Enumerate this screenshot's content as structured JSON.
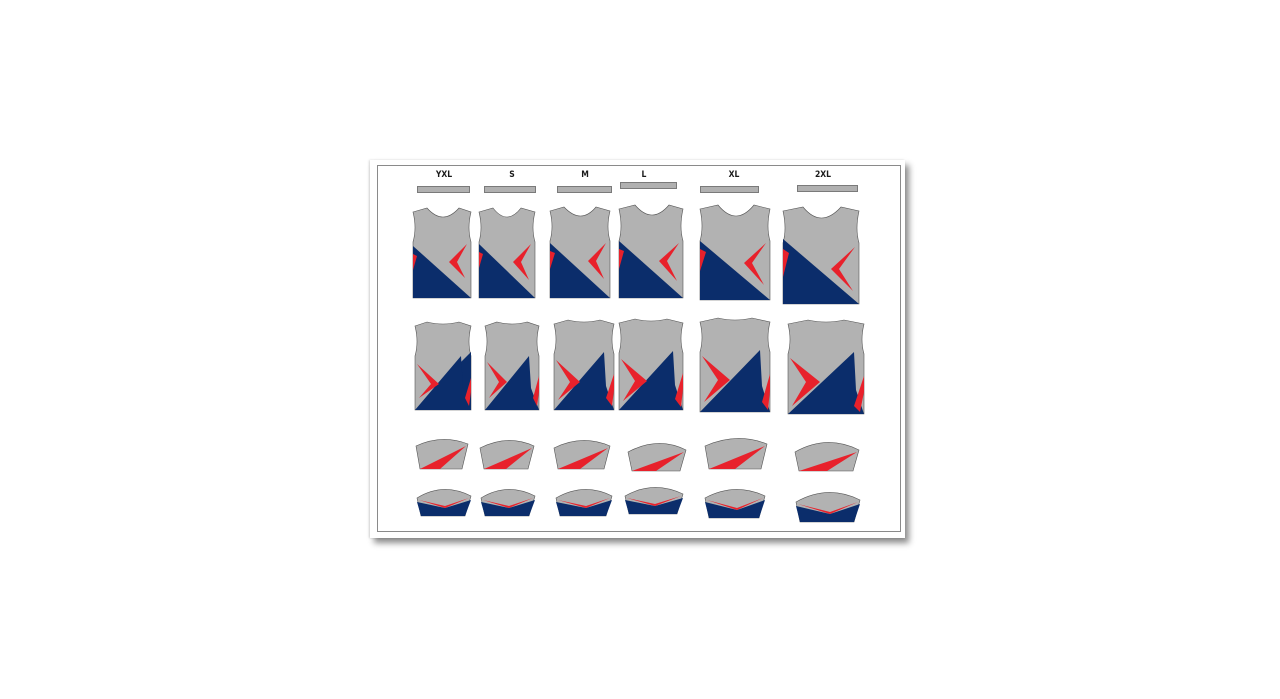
{
  "sheet": {
    "sizes": [
      "YXL",
      "S",
      "M",
      "L",
      "XL",
      "2XL"
    ]
  },
  "colors": {
    "grey": "#b2b2b2",
    "navy": "#0b2d6b",
    "red": "#e8212b",
    "outline": "#555555"
  },
  "pieces": {
    "rows": [
      "collar-strip",
      "front-panel",
      "back-panel",
      "sleeve-cap-upper",
      "sleeve-cap-lower"
    ]
  }
}
